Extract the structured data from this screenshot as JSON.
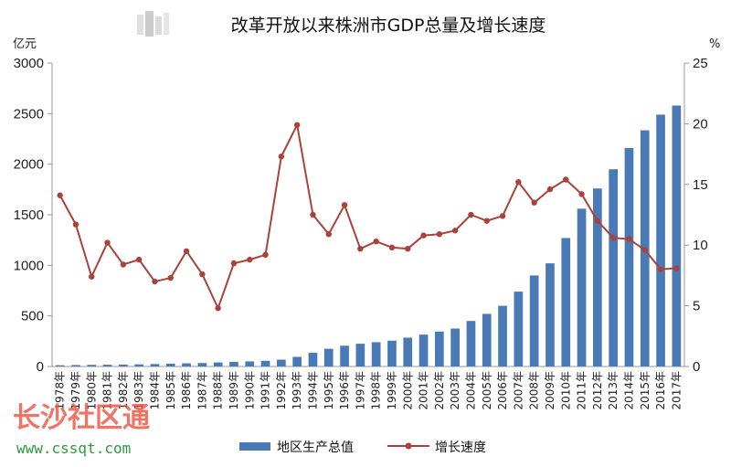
{
  "chart_data": {
    "type": "bar",
    "title": "改革开放以来株洲市GDP总量及增长速度",
    "y_left_unit": "亿元",
    "y_right_unit": "%",
    "ylim_left": [
      0,
      3000
    ],
    "ylim_right": [
      0,
      25
    ],
    "yticks_left": [
      "0",
      "500",
      "1000",
      "1500",
      "2000",
      "2500",
      "3000"
    ],
    "yticks_right": [
      "0",
      "5",
      "10",
      "15",
      "20",
      "25"
    ],
    "categories": [
      "1978年",
      "1979年",
      "1980年",
      "1981年",
      "1982年",
      "1983年",
      "1984年",
      "1985年",
      "1986年",
      "1987年",
      "1988年",
      "1989年",
      "1990年",
      "1991年",
      "1992年",
      "1993年",
      "1994年",
      "1995年",
      "1996年",
      "1997年",
      "1998年",
      "1999年",
      "2000年",
      "2001年",
      "2002年",
      "2003年",
      "2004年",
      "2005年",
      "2006年",
      "2007年",
      "2008年",
      "2009年",
      "2010年",
      "2011年",
      "2012年",
      "2013年",
      "2014年",
      "2015年",
      "2016年",
      "2017年"
    ],
    "series": [
      {
        "name": "地区生产总值",
        "kind": "bar",
        "axis": "left",
        "color": "#4a7ab6",
        "values": [
          12,
          14,
          16,
          17,
          19,
          21,
          24,
          28,
          31,
          34,
          40,
          45,
          50,
          56,
          68,
          95,
          135,
          175,
          205,
          225,
          240,
          255,
          285,
          315,
          345,
          375,
          450,
          520,
          600,
          740,
          900,
          1020,
          1270,
          1560,
          1760,
          1950,
          2160,
          2335,
          2490,
          2580
        ]
      },
      {
        "name": "增长速度",
        "kind": "line",
        "axis": "right",
        "color": "#a9423a",
        "values": [
          14.1,
          11.7,
          7.4,
          10.2,
          8.4,
          8.8,
          7.0,
          7.3,
          9.5,
          7.6,
          4.8,
          8.5,
          8.8,
          9.2,
          17.3,
          19.9,
          12.5,
          10.9,
          13.3,
          9.7,
          10.3,
          9.8,
          9.7,
          10.8,
          10.9,
          11.2,
          12.5,
          12.0,
          12.4,
          15.2,
          13.5,
          14.6,
          15.4,
          14.2,
          12.0,
          10.6,
          10.5,
          9.6,
          8.0,
          8.1
        ]
      }
    ],
    "legend_position": "bottom"
  },
  "watermark": {
    "text": "长沙社区通",
    "url": "www.cssqt.com"
  }
}
